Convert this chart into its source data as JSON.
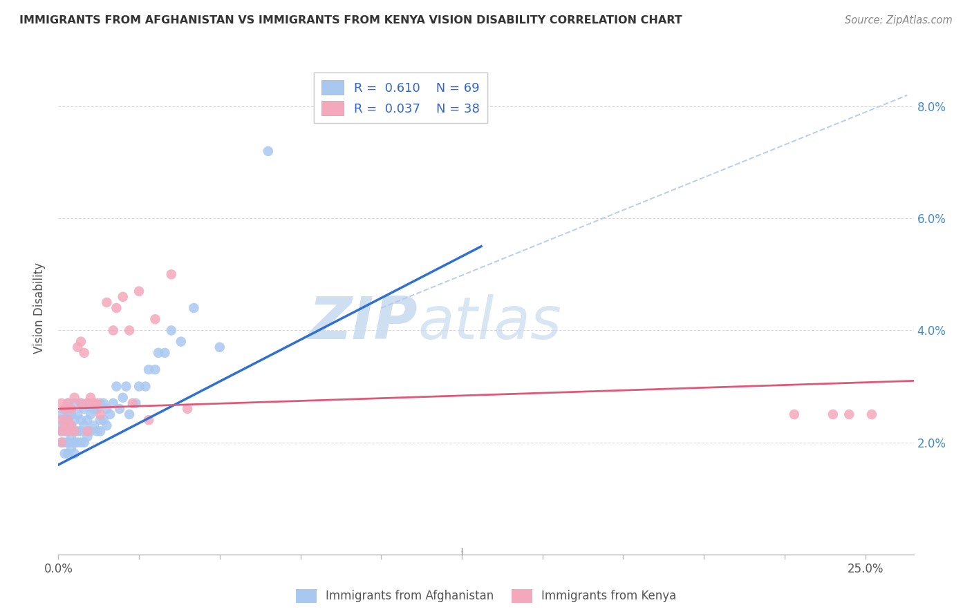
{
  "title": "IMMIGRANTS FROM AFGHANISTAN VS IMMIGRANTS FROM KENYA VISION DISABILITY CORRELATION CHART",
  "source": "Source: ZipAtlas.com",
  "ylabel": "Vision Disability",
  "R_afghanistan": 0.61,
  "N_afghanistan": 69,
  "R_kenya": 0.037,
  "N_kenya": 38,
  "color_afghanistan": "#A8C8F0",
  "color_kenya": "#F4A8BC",
  "color_line_afghanistan": "#3070D0",
  "color_line_kenya": "#E05878",
  "color_dashed": "#B0C8E8",
  "watermark_color": "#D8E8F8",
  "xlim": [
    0.0,
    0.265
  ],
  "ylim": [
    0.0,
    0.088
  ],
  "afg_line_x": [
    0.0,
    0.131
  ],
  "afg_line_y": [
    0.016,
    0.055
  ],
  "ken_line_x": [
    0.0,
    0.265
  ],
  "ken_line_y": [
    0.026,
    0.031
  ],
  "dash_line_x": [
    0.1,
    0.263
  ],
  "dash_line_y": [
    0.044,
    0.082
  ],
  "afghanistan_x": [
    0.001,
    0.001,
    0.001,
    0.001,
    0.002,
    0.002,
    0.002,
    0.002,
    0.002,
    0.003,
    0.003,
    0.003,
    0.003,
    0.003,
    0.003,
    0.004,
    0.004,
    0.004,
    0.004,
    0.005,
    0.005,
    0.005,
    0.005,
    0.005,
    0.006,
    0.006,
    0.006,
    0.007,
    0.007,
    0.007,
    0.007,
    0.008,
    0.008,
    0.008,
    0.009,
    0.009,
    0.009,
    0.01,
    0.01,
    0.011,
    0.011,
    0.012,
    0.012,
    0.013,
    0.013,
    0.013,
    0.014,
    0.014,
    0.015,
    0.015,
    0.016,
    0.017,
    0.018,
    0.019,
    0.02,
    0.021,
    0.022,
    0.024,
    0.025,
    0.027,
    0.028,
    0.03,
    0.031,
    0.033,
    0.035,
    0.038,
    0.042,
    0.05,
    0.065
  ],
  "afghanistan_y": [
    0.02,
    0.022,
    0.023,
    0.025,
    0.018,
    0.02,
    0.022,
    0.024,
    0.026,
    0.018,
    0.02,
    0.022,
    0.024,
    0.025,
    0.027,
    0.019,
    0.021,
    0.023,
    0.025,
    0.018,
    0.02,
    0.022,
    0.024,
    0.027,
    0.02,
    0.022,
    0.025,
    0.02,
    0.022,
    0.024,
    0.027,
    0.02,
    0.023,
    0.026,
    0.021,
    0.024,
    0.027,
    0.022,
    0.025,
    0.023,
    0.026,
    0.022,
    0.026,
    0.022,
    0.024,
    0.027,
    0.024,
    0.027,
    0.023,
    0.026,
    0.025,
    0.027,
    0.03,
    0.026,
    0.028,
    0.03,
    0.025,
    0.027,
    0.03,
    0.03,
    0.033,
    0.033,
    0.036,
    0.036,
    0.04,
    0.038,
    0.044,
    0.037,
    0.072
  ],
  "kenya_x": [
    0.001,
    0.001,
    0.001,
    0.001,
    0.002,
    0.002,
    0.003,
    0.003,
    0.003,
    0.004,
    0.004,
    0.005,
    0.005,
    0.006,
    0.007,
    0.007,
    0.008,
    0.009,
    0.009,
    0.01,
    0.011,
    0.012,
    0.013,
    0.015,
    0.017,
    0.018,
    0.02,
    0.022,
    0.023,
    0.025,
    0.028,
    0.03,
    0.035,
    0.04,
    0.228,
    0.24,
    0.245,
    0.252
  ],
  "kenya_y": [
    0.02,
    0.022,
    0.024,
    0.027,
    0.023,
    0.026,
    0.022,
    0.024,
    0.027,
    0.023,
    0.026,
    0.022,
    0.028,
    0.037,
    0.027,
    0.038,
    0.036,
    0.022,
    0.027,
    0.028,
    0.027,
    0.027,
    0.025,
    0.045,
    0.04,
    0.044,
    0.046,
    0.04,
    0.027,
    0.047,
    0.024,
    0.042,
    0.05,
    0.026,
    0.025,
    0.025,
    0.025,
    0.025
  ],
  "legend_bottom_1": "Immigrants from Afghanistan",
  "legend_bottom_2": "Immigrants from Kenya"
}
